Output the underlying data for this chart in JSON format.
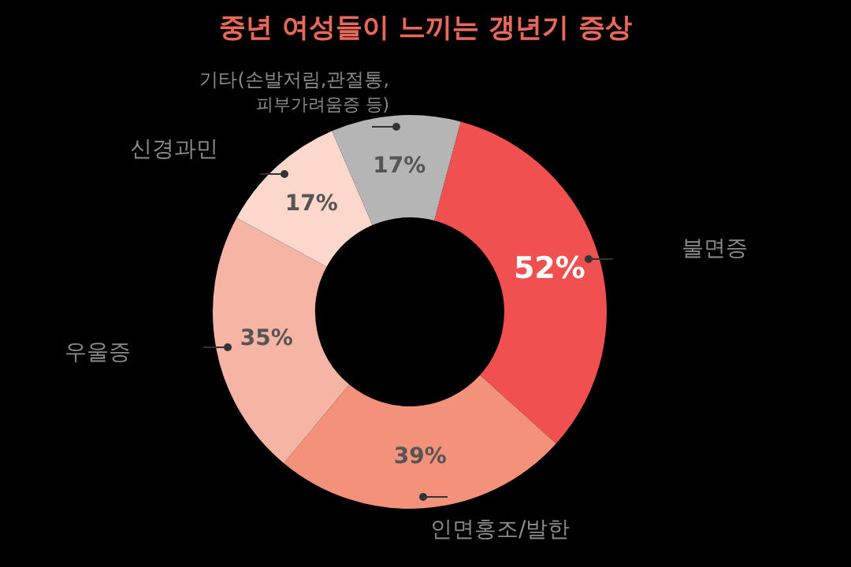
{
  "chart_data": {
    "type": "donut",
    "title": "중년 여성들이 느끼는 갱년기 증상",
    "categories": [
      "불면증",
      "인면홍조/발한",
      "우울증",
      "신경과민",
      "기타(손발저림,관절통,\n피부가려움증 등)"
    ],
    "values": [
      52,
      39,
      35,
      17,
      17
    ],
    "value_labels": [
      "52%",
      "39%",
      "35%",
      "17%",
      "17%"
    ],
    "colors": [
      "#f05050",
      "#f4917b",
      "#f6b5a4",
      "#fbd7cc",
      "#b5b5b5"
    ],
    "legend": false
  }
}
